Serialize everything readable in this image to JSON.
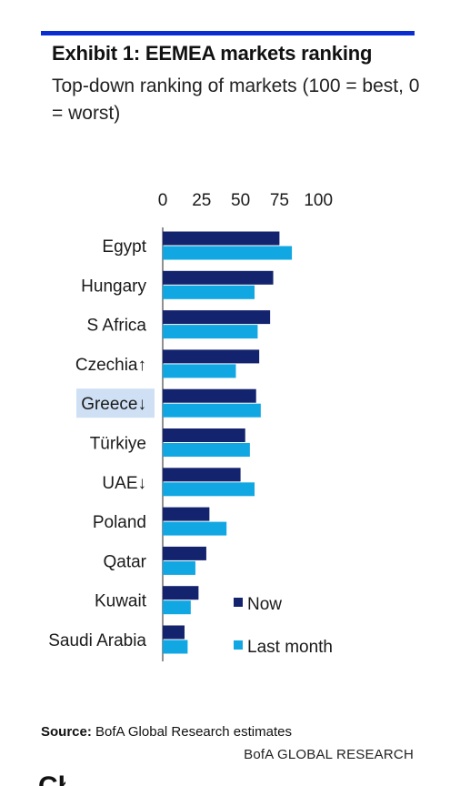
{
  "header": {
    "title": "Exhibit 1: EEMEA markets ranking",
    "subtitle": "Top-down ranking of markets (100 = best, 0 = worst)"
  },
  "footer": {
    "source_label": "Source:",
    "source_text": "BofA Global Research estimates",
    "brand": "BofA GLOBAL RESEARCH",
    "cut_text": "Ch"
  },
  "colors": {
    "accent_rule": "#0a2dd1",
    "now": "#14236e",
    "last_month": "#11a7e2",
    "highlight": "#cfe0f5"
  },
  "chart_data": {
    "type": "bar",
    "orientation": "horizontal",
    "categories": [
      "Egypt",
      "Hungary",
      "S Africa",
      "Czechia↑",
      "Greece↓",
      "Türkiye",
      "UAE↓",
      "Poland",
      "Qatar",
      "Kuwait",
      "Saudi Arabia"
    ],
    "highlighted_category": "Greece↓",
    "series": [
      {
        "name": "Now",
        "values": [
          75,
          71,
          69,
          62,
          60,
          53,
          50,
          30,
          28,
          23,
          14
        ]
      },
      {
        "name": "Last month",
        "values": [
          83,
          59,
          61,
          47,
          63,
          56,
          59,
          41,
          21,
          18,
          16
        ]
      }
    ],
    "xlim": [
      0,
      100
    ],
    "xticks": [
      0,
      25,
      50,
      75,
      100
    ],
    "tick_position": "top",
    "grid": false,
    "legend_position": "bottom-right"
  }
}
